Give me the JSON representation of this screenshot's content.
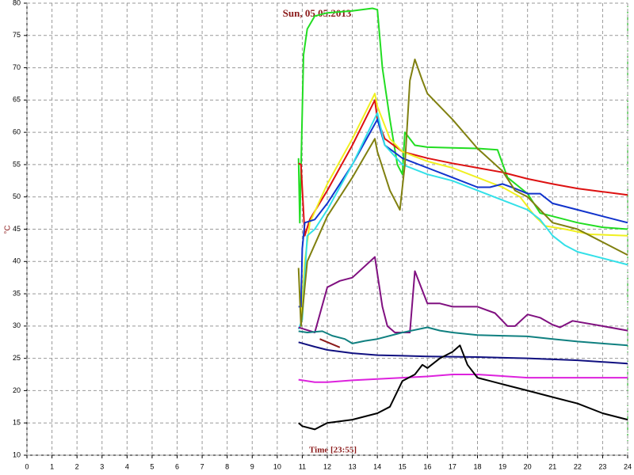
{
  "chart_data": {
    "type": "line",
    "title": "Sun, 05.05.2013",
    "x_label": "Time [23:55]",
    "y_label": "°C",
    "xlim": [
      0,
      24
    ],
    "ylim": [
      10,
      80
    ],
    "xticks": [
      0,
      1,
      2,
      3,
      4,
      5,
      6,
      7,
      8,
      9,
      10,
      11,
      12,
      13,
      14,
      15,
      16,
      17,
      18,
      19,
      20,
      21,
      22,
      23,
      24
    ],
    "yticks": [
      10,
      15,
      20,
      25,
      30,
      35,
      40,
      45,
      50,
      55,
      60,
      65,
      70,
      75,
      80
    ],
    "grid": true,
    "series": [
      {
        "color": "#22dd22",
        "x": [
          10.85,
          10.9,
          11.05,
          11.2,
          11.5,
          12,
          13,
          13.8,
          14,
          14.2,
          14.5,
          14.8,
          15,
          15.1,
          15.5,
          16,
          17,
          18,
          18.8,
          19.2,
          20,
          20.5,
          21,
          22,
          23,
          24
        ],
        "values": [
          56,
          46,
          72,
          76,
          78,
          78.5,
          78.8,
          79.2,
          79,
          70,
          62,
          55,
          53.5,
          60,
          58,
          57.7,
          57.6,
          57.5,
          57.3,
          53,
          50.5,
          47.5,
          47,
          46,
          45.3,
          45
        ]
      },
      {
        "color": "#dd1111",
        "x": [
          10.85,
          10.95,
          11.1,
          11.3,
          12,
          13,
          13.9,
          14,
          14.3,
          15,
          16,
          17,
          18,
          19,
          20,
          21,
          22,
          23,
          24
        ],
        "values": [
          55.2,
          55,
          44,
          46.5,
          51,
          58,
          65,
          62,
          59,
          57,
          56,
          55.2,
          54.5,
          53.8,
          52.8,
          52,
          51.3,
          50.8,
          50.3
        ]
      },
      {
        "color": "#f0f020",
        "x": [
          10.95,
          11.1,
          11.3,
          12,
          13,
          13.9,
          14,
          14.5,
          15,
          16,
          17,
          18,
          19,
          19.7,
          20.3,
          20.7,
          21.5,
          22.5,
          24
        ],
        "values": [
          31,
          40,
          46,
          52,
          59,
          66,
          64,
          59,
          57,
          55.5,
          54.5,
          53,
          51.5,
          50,
          47,
          45.5,
          45,
          44.2,
          44
        ]
      },
      {
        "color": "#1133cc",
        "x": [
          10.85,
          10.95,
          11,
          11.1,
          11.5,
          12,
          13,
          14,
          14.3,
          15,
          16,
          17,
          18,
          18.5,
          19,
          19.5,
          20,
          20.5,
          21,
          22,
          23,
          24
        ],
        "values": [
          33,
          33,
          42,
          46,
          46.5,
          49,
          55,
          62,
          58,
          56,
          54.5,
          53,
          51.5,
          51.5,
          52,
          51.3,
          50.5,
          50.5,
          49,
          48,
          47,
          46
        ]
      },
      {
        "color": "#33e0e8",
        "x": [
          10.85,
          11,
          11.2,
          11.5,
          12,
          13,
          14,
          14.3,
          15,
          16,
          17,
          18,
          19,
          20,
          20.5,
          21,
          21.5,
          22,
          23,
          24
        ],
        "values": [
          29.5,
          31,
          44,
          45,
          48,
          55,
          63,
          58,
          55,
          53.5,
          52.5,
          51,
          49.5,
          48,
          46.5,
          44,
          42.5,
          41.5,
          40.5,
          39.5
        ]
      },
      {
        "color": "#808010",
        "x": [
          10.85,
          10.95,
          11.2,
          12,
          13,
          13.9,
          14,
          14.5,
          14.9,
          15.1,
          15.3,
          15.5,
          15.8,
          16,
          17,
          18,
          19,
          19.5,
          20,
          20.5,
          21,
          22,
          23,
          24
        ],
        "values": [
          39,
          30,
          40,
          47,
          53,
          59,
          57,
          51,
          48,
          55,
          68,
          71.3,
          68,
          66,
          62,
          57.5,
          54,
          51,
          50,
          48,
          46,
          45,
          43,
          41
        ]
      },
      {
        "color": "#801080",
        "x": [
          10.85,
          11.5,
          12,
          12.5,
          13,
          13.9,
          14.2,
          14.4,
          14.7,
          15.3,
          15.5,
          16,
          16.5,
          17,
          18,
          18.7,
          19.2,
          19.5,
          20,
          20.5,
          21,
          21.3,
          21.8,
          23,
          24
        ],
        "values": [
          29.8,
          29,
          36,
          37,
          37.5,
          40.7,
          33,
          30,
          29,
          29,
          38.5,
          33.5,
          33.5,
          33,
          33,
          32,
          30,
          30,
          31.8,
          31.3,
          30.2,
          29.8,
          30.8,
          30,
          29.3
        ]
      },
      {
        "color": "#108080",
        "x": [
          10.85,
          11.2,
          11.8,
          12.2,
          12.7,
          13,
          13.5,
          14,
          15,
          16,
          16.5,
          17,
          18,
          19,
          20,
          21,
          22,
          23,
          24
        ],
        "values": [
          29.2,
          29,
          29.2,
          28.5,
          28,
          27.3,
          27.7,
          28,
          29,
          29.8,
          29.3,
          29,
          28.6,
          28.5,
          28.4,
          28,
          27.6,
          27.3,
          27
        ]
      },
      {
        "color": "#101080",
        "x": [
          10.85,
          11.5,
          12,
          13,
          14,
          16,
          18,
          20,
          22,
          24
        ],
        "values": [
          27.5,
          26.8,
          26.3,
          25.8,
          25.5,
          25.3,
          25.2,
          25,
          24.7,
          24.2
        ]
      },
      {
        "color": "#dd22dd",
        "x": [
          10.85,
          11.5,
          12,
          13,
          14,
          15,
          16,
          17,
          18,
          20,
          22,
          24
        ],
        "values": [
          21.7,
          21.3,
          21.3,
          21.6,
          21.8,
          22,
          22.2,
          22.5,
          22.5,
          22,
          22,
          22
        ]
      },
      {
        "color": "#000000",
        "x": [
          10.85,
          11,
          11.5,
          12,
          13,
          14,
          14.5,
          15,
          15.5,
          15.8,
          16,
          16.5,
          17,
          17.3,
          17.6,
          18,
          18.5,
          19,
          20,
          21,
          22,
          23,
          24
        ],
        "values": [
          15,
          14.5,
          14,
          15,
          15.5,
          16.5,
          17.5,
          21.5,
          22.5,
          24,
          23.5,
          25,
          26,
          27,
          24,
          22,
          21.5,
          21,
          20,
          19,
          18,
          16.5,
          15.5
        ]
      },
      {
        "color": "#8b1a1a",
        "x": [
          11.7,
          12.5
        ],
        "values": [
          28,
          26.7
        ]
      }
    ]
  }
}
